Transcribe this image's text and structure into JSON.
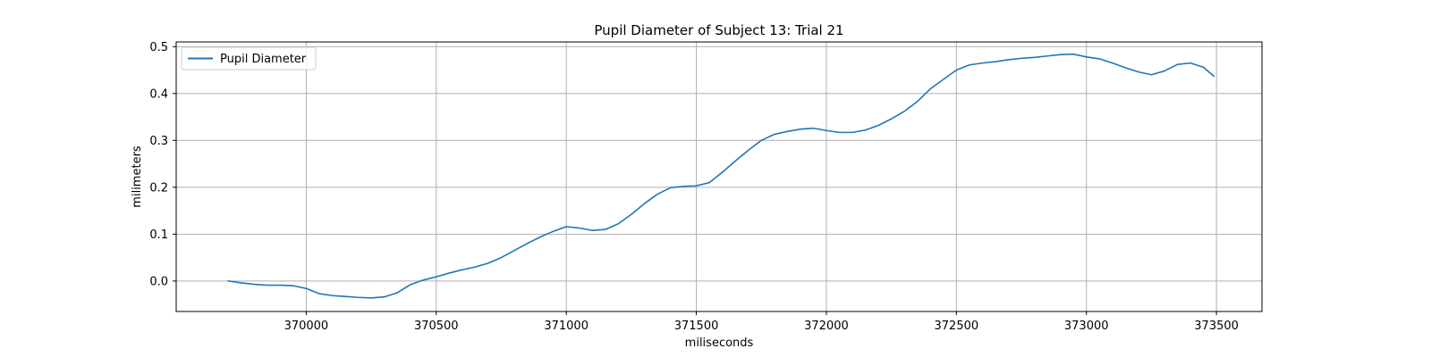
{
  "chart_data": {
    "type": "line",
    "title": "Pupil Diameter of Subject 13: Trial 21",
    "xlabel": "miliseconds",
    "ylabel": "milimeters",
    "xlim": [
      369500,
      373675
    ],
    "ylim": [
      -0.065,
      0.51
    ],
    "xticks": [
      370000,
      370500,
      371000,
      371500,
      372000,
      372500,
      373000,
      373500
    ],
    "xtick_labels": [
      "370000",
      "370500",
      "371000",
      "371500",
      "372000",
      "372500",
      "373000",
      "373500"
    ],
    "yticks": [
      0.0,
      0.1,
      0.2,
      0.3,
      0.4,
      0.5
    ],
    "ytick_labels": [
      "0.0",
      "0.1",
      "0.2",
      "0.3",
      "0.4",
      "0.5"
    ],
    "grid": true,
    "legend_position": "top-left",
    "colors": {
      "series": "#1f77b4",
      "grid": "#b0b0b0",
      "axes": "#000000"
    },
    "series": [
      {
        "name": "Pupil Diameter",
        "x": [
          369700,
          369750,
          369800,
          369850,
          369900,
          369950,
          370000,
          370050,
          370100,
          370150,
          370200,
          370250,
          370300,
          370350,
          370400,
          370450,
          370500,
          370550,
          370600,
          370650,
          370700,
          370750,
          370800,
          370850,
          370900,
          370950,
          371000,
          371050,
          371100,
          371150,
          371200,
          371250,
          371300,
          371350,
          371400,
          371450,
          371500,
          371550,
          371600,
          371650,
          371700,
          371750,
          371800,
          371850,
          371900,
          371950,
          372000,
          372050,
          372100,
          372150,
          372200,
          372250,
          372300,
          372350,
          372400,
          372450,
          372500,
          372550,
          372600,
          372650,
          372700,
          372750,
          372800,
          372850,
          372900,
          372950,
          373000,
          373050,
          373100,
          373150,
          373200,
          373250,
          373300,
          373350,
          373400,
          373450,
          373490
        ],
        "y": [
          0.0,
          -0.004,
          -0.007,
          -0.009,
          -0.009,
          -0.01,
          -0.016,
          -0.027,
          -0.031,
          -0.033,
          -0.035,
          -0.036,
          -0.034,
          -0.025,
          -0.008,
          0.002,
          0.009,
          0.017,
          0.024,
          0.03,
          0.038,
          0.05,
          0.065,
          0.08,
          0.094,
          0.106,
          0.116,
          0.113,
          0.108,
          0.11,
          0.122,
          0.142,
          0.165,
          0.185,
          0.199,
          0.202,
          0.203,
          0.21,
          0.232,
          0.256,
          0.279,
          0.3,
          0.313,
          0.319,
          0.324,
          0.326,
          0.321,
          0.317,
          0.317,
          0.322,
          0.332,
          0.346,
          0.362,
          0.383,
          0.41,
          0.43,
          0.45,
          0.461,
          0.465,
          0.468,
          0.472,
          0.475,
          0.477,
          0.48,
          0.483,
          0.484,
          0.478,
          0.474,
          0.465,
          0.455,
          0.446,
          0.44,
          0.448,
          0.462,
          0.465,
          0.456,
          0.437
        ]
      }
    ]
  }
}
